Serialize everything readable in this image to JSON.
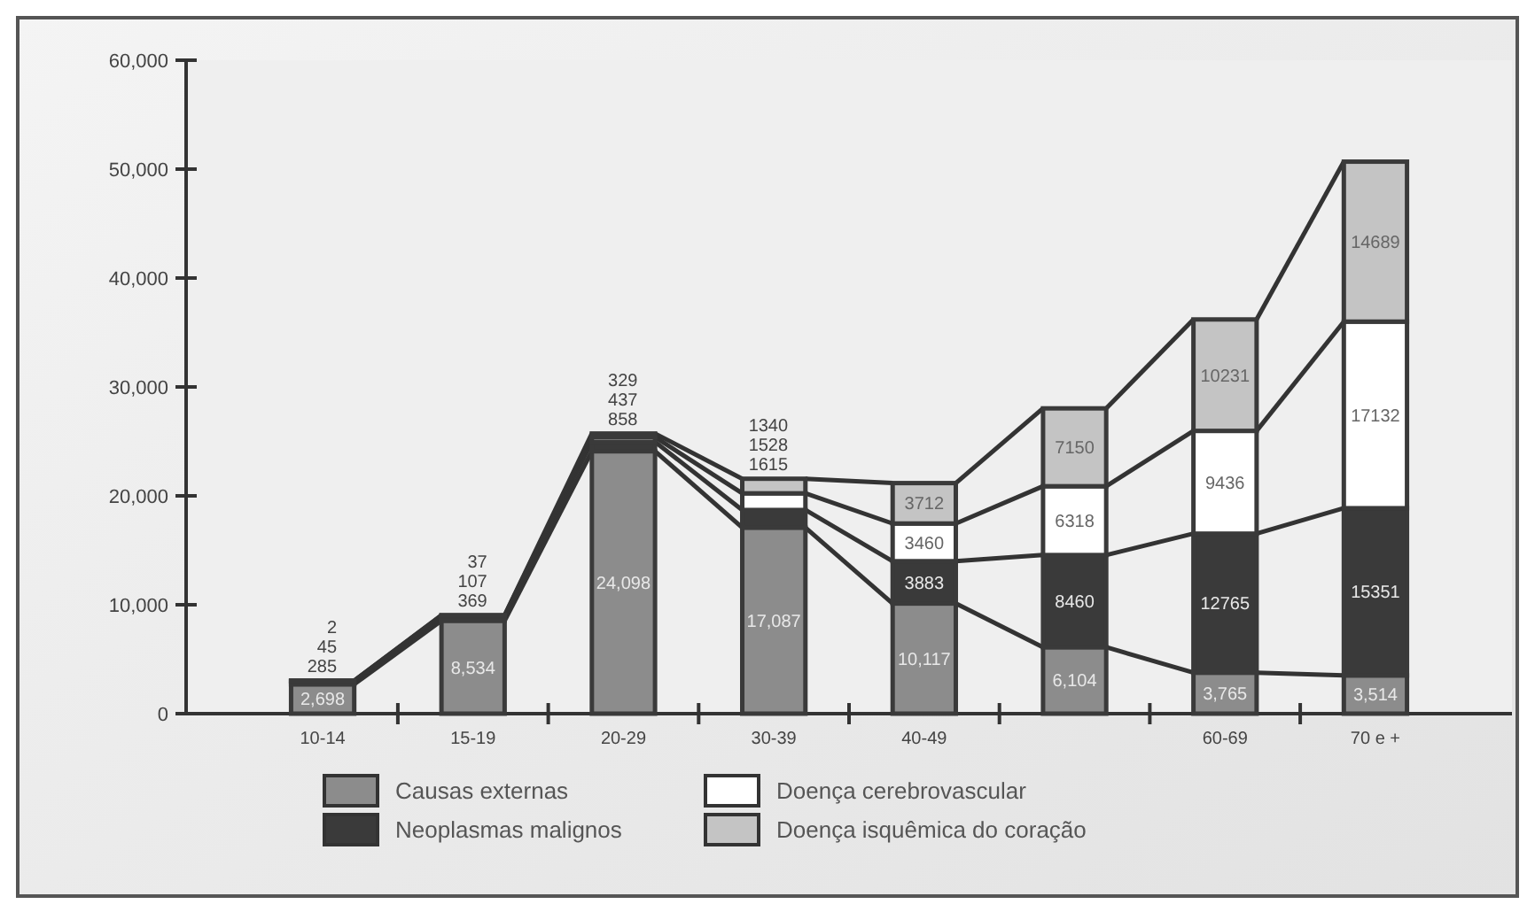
{
  "chart_data": {
    "type": "bar",
    "stacked": true,
    "categories": [
      "10-14",
      "15-19",
      "20-29",
      "30-39",
      "40-49",
      null,
      "60-69",
      "70 e +"
    ],
    "series": [
      {
        "name": "Causas externas",
        "color": "#8c8c8c",
        "values": [
          2698,
          8534,
          24098,
          17087,
          10117,
          6104,
          3765,
          3514
        ],
        "value_labels": [
          "2,698",
          "8,534",
          "24,098",
          "17,087",
          "10,117",
          "6,104",
          "3,765",
          "3,514"
        ]
      },
      {
        "name": "Neoplasmas malignos",
        "color": "#3a3a3a",
        "values": [
          285,
          369,
          858,
          1615,
          3883,
          8460,
          12765,
          15351
        ],
        "value_labels": [
          "285",
          "369",
          "858",
          "1615",
          "3883",
          "8460",
          "12765",
          "15351"
        ]
      },
      {
        "name": "Doença cerebrovascular",
        "color": "#ffffff",
        "values": [
          45,
          107,
          437,
          1528,
          3460,
          6318,
          9436,
          17132
        ],
        "value_labels": [
          "45",
          "107",
          "437",
          "1528",
          "3460",
          "6318",
          "9436",
          "17132"
        ]
      },
      {
        "name": "Doença isquêmica do coração",
        "color": "#c4c4c4",
        "values": [
          2,
          37,
          329,
          1340,
          3712,
          7150,
          10231,
          14689
        ],
        "value_labels": [
          "2",
          "37",
          "329",
          "1340",
          "3712",
          "7150",
          "10231",
          "14689"
        ]
      }
    ],
    "ylim": [
      0,
      60000
    ],
    "yticks": [
      {
        "value": 0,
        "label": "0"
      },
      {
        "value": 10000,
        "label": "10,000"
      },
      {
        "value": 20000,
        "label": "20,000"
      },
      {
        "value": 30000,
        "label": "30,000"
      },
      {
        "value": 40000,
        "label": "40,000"
      },
      {
        "value": 50000,
        "label": "50,000"
      },
      {
        "value": 60000,
        "label": "60,000"
      }
    ],
    "legend": "bottom",
    "grid": false
  }
}
